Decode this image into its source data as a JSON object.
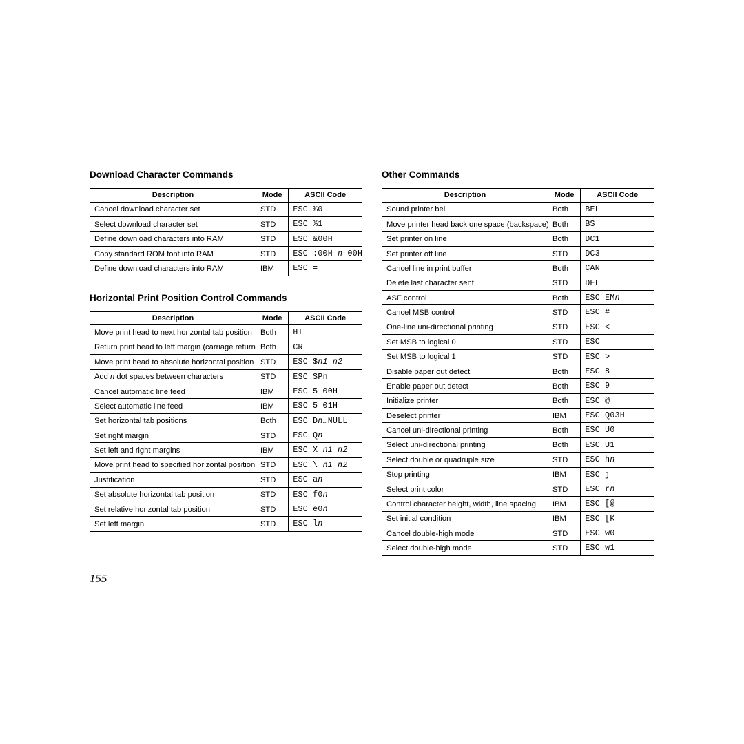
{
  "page_number": "155",
  "colors": {
    "background": "#ffffff",
    "text": "#000000",
    "border": "#000000"
  },
  "fonts": {
    "body_family": "Arial, Helvetica, sans-serif",
    "mono_family": "Courier New, monospace",
    "pagenum_family": "Times New Roman, serif",
    "section_title_pt": 13.5,
    "cell_pt": 11.2,
    "header_pt": 11,
    "mono_pt": 11.5,
    "pagenum_pt": 17
  },
  "column_widths_pct": {
    "description": 61,
    "mode": 12,
    "ascii_code": 27
  },
  "headers": {
    "description": "Description",
    "mode": "Mode",
    "ascii_code": "ASCII Code"
  },
  "left": {
    "sections": [
      {
        "title": "Download Character Commands",
        "rows": [
          {
            "desc": [
              [
                "Cancel download character set",
                0
              ]
            ],
            "mode": "STD",
            "code": [
              [
                "ESC %0",
                1
              ]
            ]
          },
          {
            "desc": [
              [
                "Select download character set",
                0
              ]
            ],
            "mode": "STD",
            "code": [
              [
                "ESC %1",
                1
              ]
            ]
          },
          {
            "desc": [
              [
                "Define download characters into RAM",
                0
              ]
            ],
            "mode": "STD",
            "code": [
              [
                "ESC &00H",
                1
              ]
            ]
          },
          {
            "desc": [
              [
                "Copy standard ROM font into RAM",
                0
              ]
            ],
            "mode": "STD",
            "code": [
              [
                "ESC :00H ",
                1
              ],
              [
                "n",
                3
              ],
              [
                " 00H",
                1
              ]
            ]
          },
          {
            "desc": [
              [
                "Define download characters into RAM",
                0
              ]
            ],
            "mode": "IBM",
            "code": [
              [
                "ESC =",
                1
              ]
            ]
          }
        ]
      },
      {
        "title": "Horizontal Print Position Control Commands",
        "rows": [
          {
            "desc": [
              [
                "Move print head to next horizontal tab position",
                0
              ]
            ],
            "mode": "Both",
            "code": [
              [
                "HT",
                1
              ]
            ]
          },
          {
            "desc": [
              [
                "Return print head to left margin (carriage return)",
                0
              ]
            ],
            "mode": "Both",
            "code": [
              [
                "CR",
                1
              ]
            ]
          },
          {
            "desc": [
              [
                "Move print head to absolute horizontal position",
                0
              ]
            ],
            "mode": "STD",
            "code": [
              [
                "ESC $",
                1
              ],
              [
                "n1 n2",
                3
              ]
            ]
          },
          {
            "desc": [
              [
                "Add ",
                0
              ],
              [
                "n",
                2
              ],
              [
                " dot spaces between characters",
                0
              ]
            ],
            "mode": "STD",
            "code": [
              [
                "ESC SP",
                1
              ],
              [
                "n",
                1
              ]
            ]
          },
          {
            "desc": [
              [
                "Cancel automatic line feed",
                0
              ]
            ],
            "mode": "IBM",
            "code": [
              [
                "ESC 5 00H",
                1
              ]
            ]
          },
          {
            "desc": [
              [
                "Select automatic line feed",
                0
              ]
            ],
            "mode": "IBM",
            "code": [
              [
                "ESC 5 01H",
                1
              ]
            ]
          },
          {
            "desc": [
              [
                "Set horizontal tab positions",
                0
              ]
            ],
            "mode": "Both",
            "code": [
              [
                "ESC D",
                1
              ],
              [
                "n",
                3
              ],
              [
                "…NULL",
                1
              ]
            ]
          },
          {
            "desc": [
              [
                "Set right margin",
                0
              ]
            ],
            "mode": "STD",
            "code": [
              [
                "ESC Q",
                1
              ],
              [
                "n",
                3
              ]
            ]
          },
          {
            "desc": [
              [
                "Set left and right margins",
                0
              ]
            ],
            "mode": "IBM",
            "code": [
              [
                "ESC X ",
                1
              ],
              [
                "n1 n2",
                3
              ]
            ]
          },
          {
            "desc": [
              [
                "Move print head to specified horizontal position",
                0
              ]
            ],
            "mode": "STD",
            "code": [
              [
                "ESC \\ ",
                1
              ],
              [
                "n1 n2",
                3
              ]
            ]
          },
          {
            "desc": [
              [
                "Justification",
                0
              ]
            ],
            "mode": "STD",
            "code": [
              [
                "ESC a",
                1
              ],
              [
                "n",
                3
              ]
            ]
          },
          {
            "desc": [
              [
                "Set absolute horizontal tab position",
                0
              ]
            ],
            "mode": "STD",
            "code": [
              [
                "ESC f0",
                1
              ],
              [
                "n",
                3
              ]
            ]
          },
          {
            "desc": [
              [
                "Set relative horizontal tab position",
                0
              ]
            ],
            "mode": "STD",
            "code": [
              [
                "ESC e0",
                1
              ],
              [
                "n",
                3
              ]
            ]
          },
          {
            "desc": [
              [
                "Set left margin",
                0
              ]
            ],
            "mode": "STD",
            "code": [
              [
                "ESC l",
                1
              ],
              [
                "n",
                3
              ]
            ]
          }
        ]
      }
    ]
  },
  "right": {
    "sections": [
      {
        "title": "Other Commands",
        "rows": [
          {
            "desc": [
              [
                "Sound printer bell",
                0
              ]
            ],
            "mode": "Both",
            "code": [
              [
                "BEL",
                1
              ]
            ]
          },
          {
            "desc": [
              [
                "Move printer head back one space (backspace)",
                0
              ]
            ],
            "mode": "Both",
            "code": [
              [
                "BS",
                1
              ]
            ]
          },
          {
            "desc": [
              [
                "Set printer on line",
                0
              ]
            ],
            "mode": "Both",
            "code": [
              [
                "DC1",
                1
              ]
            ]
          },
          {
            "desc": [
              [
                "Set printer off line",
                0
              ]
            ],
            "mode": "STD",
            "code": [
              [
                "DC3",
                1
              ]
            ]
          },
          {
            "desc": [
              [
                "Cancel line in print buffer",
                0
              ]
            ],
            "mode": "Both",
            "code": [
              [
                "CAN",
                1
              ]
            ]
          },
          {
            "desc": [
              [
                "Delete last character sent",
                0
              ]
            ],
            "mode": "STD",
            "code": [
              [
                "DEL",
                1
              ]
            ]
          },
          {
            "desc": [
              [
                "ASF control",
                0
              ]
            ],
            "mode": "Both",
            "code": [
              [
                "ESC EM",
                1
              ],
              [
                "n",
                3
              ]
            ]
          },
          {
            "desc": [
              [
                "Cancel MSB control",
                0
              ]
            ],
            "mode": "STD",
            "code": [
              [
                "ESC #",
                1
              ]
            ]
          },
          {
            "desc": [
              [
                "One-line uni-directional printing",
                0
              ]
            ],
            "mode": "STD",
            "code": [
              [
                "ESC <",
                1
              ]
            ]
          },
          {
            "desc": [
              [
                "Set MSB to logical 0",
                0
              ]
            ],
            "mode": "STD",
            "code": [
              [
                "ESC =",
                1
              ]
            ]
          },
          {
            "desc": [
              [
                "Set MSB to logical 1",
                0
              ]
            ],
            "mode": "STD",
            "code": [
              [
                "ESC >",
                1
              ]
            ]
          },
          {
            "desc": [
              [
                "Disable paper out detect",
                0
              ]
            ],
            "mode": "Both",
            "code": [
              [
                "ESC 8",
                1
              ]
            ]
          },
          {
            "desc": [
              [
                "Enable paper out detect",
                0
              ]
            ],
            "mode": "Both",
            "code": [
              [
                "ESC 9",
                1
              ]
            ]
          },
          {
            "desc": [
              [
                "Initialize printer",
                0
              ]
            ],
            "mode": "Both",
            "code": [
              [
                "ESC @",
                1
              ]
            ]
          },
          {
            "desc": [
              [
                "Deselect printer",
                0
              ]
            ],
            "mode": "IBM",
            "code": [
              [
                "ESC Q03H",
                1
              ]
            ]
          },
          {
            "desc": [
              [
                "Cancel uni-directional printing",
                0
              ]
            ],
            "mode": "Both",
            "code": [
              [
                "ESC U0",
                1
              ]
            ]
          },
          {
            "desc": [
              [
                "Select uni-directional printing",
                0
              ]
            ],
            "mode": "Both",
            "code": [
              [
                "ESC U1",
                1
              ]
            ]
          },
          {
            "desc": [
              [
                "Select double or quadruple size",
                0
              ]
            ],
            "mode": "STD",
            "code": [
              [
                "ESC h",
                1
              ],
              [
                "n",
                3
              ]
            ]
          },
          {
            "desc": [
              [
                "Stop printing",
                0
              ]
            ],
            "mode": "IBM",
            "code": [
              [
                "ESC j",
                1
              ]
            ]
          },
          {
            "desc": [
              [
                "Select print color",
                0
              ]
            ],
            "mode": "STD",
            "code": [
              [
                "ESC r",
                1
              ],
              [
                "n",
                3
              ]
            ]
          },
          {
            "desc": [
              [
                "Control character height, width, line spacing",
                0
              ]
            ],
            "mode": "IBM",
            "code": [
              [
                "ESC [@",
                1
              ]
            ]
          },
          {
            "desc": [
              [
                "Set initial condition",
                0
              ]
            ],
            "mode": "IBM",
            "code": [
              [
                "ESC [K",
                1
              ]
            ]
          },
          {
            "desc": [
              [
                "Cancel double-high mode",
                0
              ]
            ],
            "mode": "STD",
            "code": [
              [
                "ESC w0",
                1
              ]
            ]
          },
          {
            "desc": [
              [
                "Select double-high mode",
                0
              ]
            ],
            "mode": "STD",
            "code": [
              [
                "ESC w1",
                1
              ]
            ]
          }
        ]
      }
    ]
  }
}
